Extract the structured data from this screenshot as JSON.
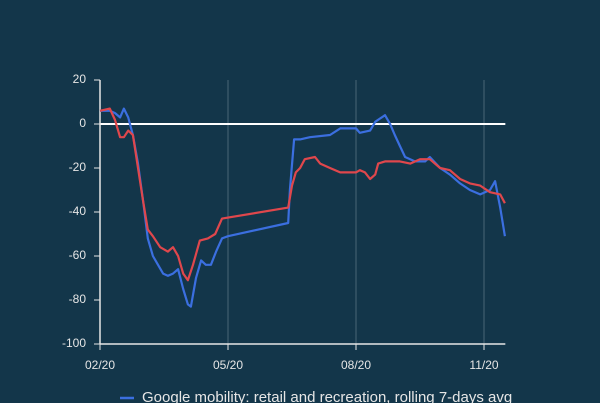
{
  "chart_data": {
    "type": "line",
    "xlim": [
      2,
      11.5
    ],
    "xticks": [
      {
        "value": 2,
        "label": "02/20"
      },
      {
        "value": 5,
        "label": "05/20"
      },
      {
        "value": 8,
        "label": "08/20"
      },
      {
        "value": 11,
        "label": "11/20"
      }
    ],
    "ylim": [
      -100,
      20
    ],
    "yticks": [
      -100,
      -80,
      -60,
      -40,
      -20,
      0,
      20
    ],
    "grid": true,
    "series": [
      {
        "name": "Google mobility: retail and recreation, rolling 7-days avg",
        "color": "#3b6fe0",
        "x": [
          2,
          2.23,
          2.35,
          2.47,
          2.56,
          2.66,
          2.77,
          2.89,
          3.01,
          3.12,
          3.24,
          3.36,
          3.48,
          3.59,
          3.71,
          3.83,
          3.95,
          4.06,
          4.13,
          4.25,
          4.37,
          4.48,
          4.6,
          4.72,
          4.86,
          5,
          6.41,
          6.45,
          6.55,
          6.69,
          6.92,
          7.39,
          7.63,
          8,
          8.09,
          8.33,
          8.45,
          8.68,
          8.8,
          8.91,
          9.03,
          9.15,
          9.38,
          9.62,
          9.73,
          9.97,
          10.2,
          10.44,
          10.67,
          10.91,
          11.14,
          11.26,
          11.38,
          11.49
        ],
        "values": [
          6,
          6,
          5,
          3,
          7,
          3,
          -5,
          -18,
          -35,
          -52,
          -60,
          -64,
          -68,
          -69,
          -68,
          -66,
          -75,
          -82,
          -83,
          -70,
          -62,
          -64,
          -64,
          -58,
          -52,
          -51,
          -45,
          -30,
          -7,
          -7,
          -6,
          -5,
          -2,
          -2,
          -4,
          -3,
          1,
          4,
          0,
          -5,
          -10,
          -15,
          -17,
          -17,
          -15,
          -20,
          -23,
          -27,
          -30,
          -32,
          -30,
          -26,
          -38,
          -51
        ]
      },
      {
        "color": "#e0474c",
        "x": [
          2,
          2.23,
          2.35,
          2.47,
          2.56,
          2.66,
          2.77,
          2.89,
          3.01,
          3.12,
          3.24,
          3.41,
          3.59,
          3.71,
          3.83,
          3.95,
          4.06,
          4.18,
          4.34,
          4.53,
          4.7,
          4.86,
          6.41,
          6.5,
          6.59,
          6.69,
          6.8,
          7.04,
          7.16,
          7.39,
          7.63,
          8,
          8.09,
          8.21,
          8.33,
          8.45,
          8.52,
          8.68,
          9.03,
          9.27,
          9.5,
          9.73,
          9.97,
          10.2,
          10.44,
          10.67,
          10.91,
          11.14,
          11.38,
          11.49
        ],
        "values": [
          6,
          7,
          2,
          -6,
          -6,
          -3,
          -5,
          -20,
          -35,
          -48,
          -51,
          -56,
          -58,
          -56,
          -60,
          -68,
          -71,
          -64,
          -53,
          -52,
          -50,
          -43,
          -38,
          -28,
          -22,
          -20,
          -16,
          -15,
          -18,
          -20,
          -22,
          -22,
          -21,
          -22,
          -25,
          -23,
          -18,
          -17,
          -17,
          -18,
          -16,
          -16,
          -20,
          -21,
          -25,
          -27,
          -28,
          -31,
          -32,
          -36
        ]
      }
    ]
  }
}
